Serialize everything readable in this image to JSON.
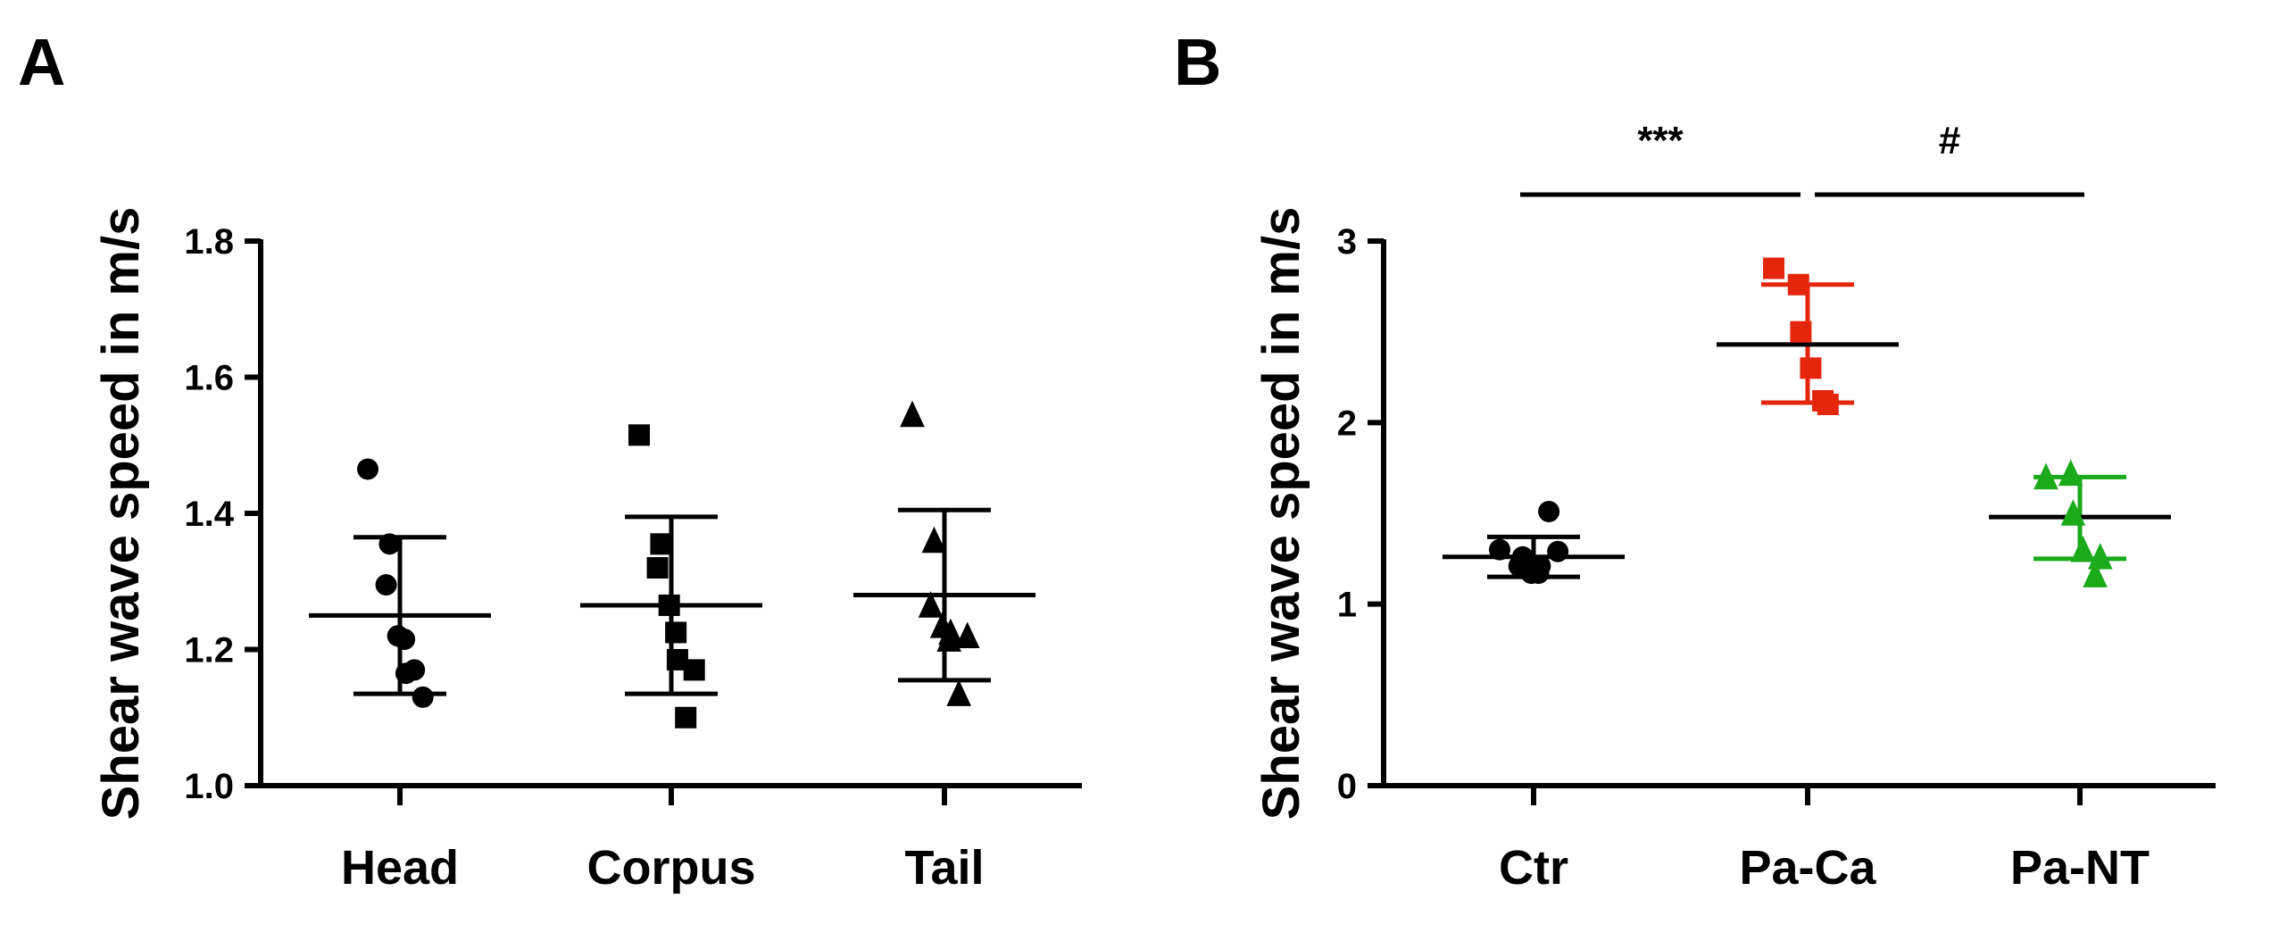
{
  "chart_data": [
    {
      "panel": "A",
      "type": "scatter",
      "ylabel": "Shear wave speed in m/s",
      "ylim": [
        1.0,
        1.8
      ],
      "yticks": [
        "1.0",
        "1.2",
        "1.4",
        "1.6",
        "1.8"
      ],
      "categories": [
        "Head",
        "Corpus",
        "Tail"
      ],
      "series": [
        {
          "category": "Head",
          "marker": "circle",
          "color": "#000000",
          "mean": 1.25,
          "sd_low": 1.135,
          "sd_high": 1.365,
          "points": [
            1.465,
            1.355,
            1.295,
            1.22,
            1.215,
            1.165,
            1.13,
            1.17
          ]
        },
        {
          "category": "Corpus",
          "marker": "square",
          "color": "#000000",
          "mean": 1.265,
          "sd_low": 1.135,
          "sd_high": 1.395,
          "points": [
            1.515,
            1.355,
            1.32,
            1.265,
            1.225,
            1.185,
            1.17,
            1.1
          ]
        },
        {
          "category": "Tail",
          "marker": "triangle",
          "color": "#000000",
          "mean": 1.28,
          "sd_low": 1.155,
          "sd_high": 1.405,
          "points": [
            1.545,
            1.36,
            1.265,
            1.235,
            1.215,
            1.225,
            1.22,
            1.135
          ]
        }
      ]
    },
    {
      "panel": "B",
      "type": "scatter",
      "ylabel": "Shear wave speed in m/s",
      "ylim": [
        0,
        3
      ],
      "yticks": [
        "0",
        "1",
        "2",
        "3"
      ],
      "categories": [
        "Ctr",
        "Pa-Ca",
        "Pa-NT"
      ],
      "series": [
        {
          "category": "Ctr",
          "marker": "circle",
          "color": "#000000",
          "mean": 1.26,
          "sd_low": 1.15,
          "sd_high": 1.37,
          "points": [
            1.3,
            1.26,
            1.21,
            1.17,
            1.17,
            1.21,
            1.29,
            1.51
          ]
        },
        {
          "category": "Pa-Ca",
          "marker": "square",
          "color": "#e3260c",
          "mean": 2.43,
          "sd_low": 2.11,
          "sd_high": 2.76,
          "points": [
            2.85,
            2.76,
            2.5,
            2.3,
            2.1,
            2.12
          ]
        },
        {
          "category": "Pa-NT",
          "marker": "triangle",
          "color": "#1aaa1a",
          "mean": 1.48,
          "sd_low": 1.25,
          "sd_high": 1.7,
          "points": [
            1.7,
            1.72,
            1.5,
            1.3,
            1.26,
            1.16
          ]
        }
      ],
      "significance": [
        {
          "label": "***",
          "from": "Ctr",
          "to": "Pa-Ca"
        },
        {
          "label": "#",
          "from": "Pa-Ca",
          "to": "Pa-NT"
        }
      ]
    }
  ]
}
